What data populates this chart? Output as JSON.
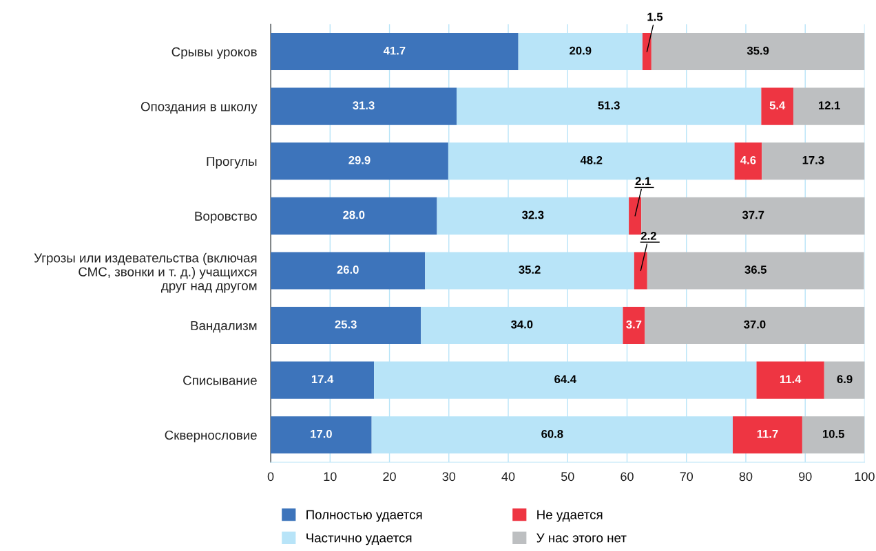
{
  "chart_data": {
    "type": "bar",
    "orientation": "horizontal",
    "stacked": true,
    "grid": "x",
    "legend": "bottom",
    "categories": [
      "Срывы уроков",
      "Опоздания в школу",
      "Прогулы",
      "Воровство",
      "Угрозы или издевательства (включая\nСМС, звонки и т. д.) учащихся\nдруг над другом",
      "Вандализм",
      "Списывание",
      "Сквернословие"
    ],
    "series": [
      {
        "name": "Полностью удается",
        "color": "#3d74bb",
        "values": [
          41.7,
          31.3,
          29.9,
          28.0,
          26.0,
          25.3,
          17.4,
          17.0
        ],
        "value_labels": [
          "41.7",
          "31.3",
          "29.9",
          "28.0",
          "26.0",
          "25.3",
          "17.4",
          "17.0"
        ]
      },
      {
        "name": "Частично удается",
        "color": "#b8e4f8",
        "values": [
          20.9,
          51.3,
          48.2,
          32.3,
          35.2,
          34.0,
          64.4,
          60.8
        ],
        "value_labels": [
          "20.9",
          "51.3",
          "48.2",
          "32.3",
          "35.2",
          "34.0",
          "64.4",
          "60.8"
        ]
      },
      {
        "name": "Не удается",
        "color": "#ee3542",
        "values": [
          1.5,
          5.4,
          4.6,
          2.1,
          2.2,
          3.7,
          11.4,
          11.7
        ],
        "value_labels": [
          "1.5",
          "5.4",
          "4.6",
          "2.1",
          "2.2",
          "3.7",
          "11.4",
          "11.7"
        ]
      },
      {
        "name": "У нас этого нет",
        "color": "#bdbfc1",
        "values": [
          35.9,
          12.1,
          17.3,
          37.7,
          36.5,
          37.0,
          6.9,
          10.5
        ],
        "value_labels": [
          "35.9",
          "12.1",
          "17.3",
          "37.7",
          "36.5",
          "37.0",
          "6.9",
          "10.5"
        ]
      }
    ],
    "xlim": [
      0,
      100
    ],
    "xticks": [
      0,
      10,
      20,
      30,
      40,
      50,
      60,
      70,
      80,
      90,
      100
    ]
  }
}
